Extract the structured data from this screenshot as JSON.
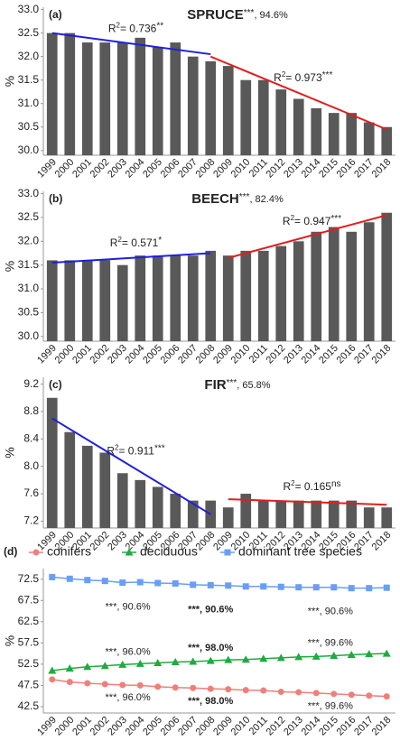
{
  "chart_data": [
    {
      "type": "bar",
      "panel_label": "(a)",
      "title": "SPRUCE",
      "title_stars": "***",
      "title_note": ", 94.6%",
      "y_label": "%",
      "categories": [
        "1999",
        "2000",
        "2001",
        "2002",
        "2003",
        "2004",
        "2005",
        "2006",
        "2007",
        "2008",
        "2009",
        "2010",
        "2011",
        "2012",
        "2013",
        "2014",
        "2015",
        "2016",
        "2017",
        "2018"
      ],
      "values": [
        32.5,
        32.5,
        32.3,
        32.3,
        32.3,
        32.4,
        32.2,
        32.3,
        32.0,
        31.9,
        31.8,
        31.5,
        31.5,
        31.3,
        31.1,
        30.9,
        30.8,
        30.8,
        30.6,
        30.5
      ],
      "color": "#595959",
      "ylim": [
        29.9,
        33.05
      ],
      "yticks": [
        {
          "value": 30,
          "label": "30.0"
        },
        30.5,
        {
          "value": 31,
          "label": "31.0"
        },
        31.5,
        {
          "value": 32,
          "label": "32.0"
        },
        32.5,
        {
          "value": 33,
          "label": "33.0"
        }
      ],
      "trend_lines": [
        {
          "color": "#1f1fe0",
          "x": [
            "1999",
            "2008"
          ],
          "y": [
            32.5,
            32.05
          ],
          "r": "R",
          "sup": "2",
          "text": "= 0.736",
          "stars": "**"
        },
        {
          "color": "#e01f1f",
          "x": [
            "2008",
            "2018"
          ],
          "y": [
            32.0,
            30.45
          ],
          "r": "R",
          "sup": "2",
          "text": "= 0.973",
          "stars": "***"
        }
      ]
    },
    {
      "type": "bar",
      "panel_label": "(b)",
      "title": "BEECH",
      "title_stars": "***",
      "title_note": ", 82.4%",
      "y_label": "%",
      "categories": [
        "1999",
        "2000",
        "2001",
        "2002",
        "2003",
        "2004",
        "2005",
        "2006",
        "2007",
        "2008",
        "2009",
        "2010",
        "2011",
        "2012",
        "2013",
        "2014",
        "2015",
        "2016",
        "2017",
        "2018"
      ],
      "values": [
        31.6,
        31.6,
        31.6,
        31.6,
        31.5,
        31.7,
        31.7,
        31.7,
        31.7,
        31.8,
        31.7,
        31.8,
        31.8,
        31.9,
        32.0,
        32.2,
        32.3,
        32.2,
        32.4,
        32.6
      ],
      "color": "#595959",
      "ylim": [
        29.9,
        33.05
      ],
      "yticks": [
        {
          "value": 30,
          "label": "30.0"
        },
        30.5,
        {
          "value": 31,
          "label": "31.0"
        },
        31.5,
        {
          "value": 32,
          "label": "32.0"
        },
        32.5,
        {
          "value": 33,
          "label": "33.0"
        }
      ],
      "trend_lines": [
        {
          "color": "#1f1fe0",
          "x": [
            "1999",
            "2008"
          ],
          "y": [
            31.55,
            31.75
          ],
          "r": "R",
          "sup": "2",
          "text": "= 0.571",
          "stars": "*"
        },
        {
          "color": "#e01f1f",
          "x": [
            "2009",
            "2018"
          ],
          "y": [
            31.65,
            32.55
          ],
          "r": "R",
          "sup": "2",
          "text": "= 0.947",
          "stars": "***"
        }
      ]
    },
    {
      "type": "bar",
      "panel_label": "(c)",
      "title": "FIR",
      "title_stars": "***",
      "title_note": ", 65.8%",
      "y_label": "%",
      "categories": [
        "1999",
        "2000",
        "2001",
        "2002",
        "2003",
        "2004",
        "2005",
        "2006",
        "2007",
        "2008",
        "2009",
        "2010",
        "2011",
        "2012",
        "2013",
        "2014",
        "2015",
        "2016",
        "2017",
        "2018"
      ],
      "values": [
        9.0,
        8.5,
        8.3,
        8.2,
        7.9,
        7.8,
        7.7,
        7.6,
        7.5,
        7.5,
        7.4,
        7.6,
        7.5,
        7.5,
        7.5,
        7.5,
        7.5,
        7.5,
        7.4,
        7.4
      ],
      "color": "#595959",
      "ylim": [
        7.1,
        9.3
      ],
      "yticks": [
        7.2,
        7.6,
        {
          "value": 8,
          "label": "8.0"
        },
        8.4,
        8.8,
        9.2
      ],
      "trend_lines": [
        {
          "color": "#1f1fe0",
          "x": [
            "1999",
            "2008"
          ],
          "y": [
            8.7,
            7.3
          ],
          "r": "R",
          "sup": "2",
          "text": "= 0.911",
          "stars": "***"
        },
        {
          "color": "#e01f1f",
          "x": [
            "2009",
            "2018"
          ],
          "y": [
            7.52,
            7.44
          ],
          "r": "R",
          "sup": "2",
          "text": "= 0.165",
          "stars": "ns"
        }
      ]
    },
    {
      "type": "line",
      "panel_label": "(d)",
      "y_label": "%",
      "legend_position": "top",
      "categories": [
        "1999",
        "2000",
        "2001",
        "2002",
        "2003",
        "2004",
        "2005",
        "2006",
        "2007",
        "2008",
        "2009",
        "2010",
        "2011",
        "2012",
        "2013",
        "2014",
        "2015",
        "2016",
        "2017",
        "2018"
      ],
      "ylim": [
        41,
        75
      ],
      "yticks": [
        42.5,
        47.5,
        52.5,
        57.5,
        62.5,
        67.5,
        72.5
      ],
      "series": [
        {
          "name": "conifers",
          "color": "#f07f7a",
          "marker": "circle",
          "values": [
            48.9,
            48.3,
            48.0,
            47.8,
            47.6,
            47.5,
            47.2,
            47.0,
            46.9,
            46.7,
            46.6,
            46.4,
            46.3,
            46.0,
            45.9,
            45.7,
            45.5,
            45.3,
            45.1,
            44.9
          ],
          "annotations": [
            {
              "text": "***, 96.0%",
              "bold": false
            },
            {
              "text": "***, 98.0%",
              "bold": true
            },
            {
              "text": "***, 99.6%",
              "bold": false
            }
          ]
        },
        {
          "name": "deciduous",
          "color": "#1fab3f",
          "marker": "triangle",
          "values": [
            51.0,
            51.5,
            51.9,
            52.1,
            52.4,
            52.6,
            52.8,
            53.0,
            53.1,
            53.3,
            53.5,
            53.6,
            53.8,
            54.0,
            54.2,
            54.3,
            54.5,
            54.7,
            54.9,
            55.0
          ],
          "annotations": [
            {
              "text": "***, 96.0%",
              "bold": false
            },
            {
              "text": "***, 98.0%",
              "bold": true
            },
            {
              "text": "***, 99.6%",
              "bold": false
            }
          ]
        },
        {
          "name": "dominant tree species",
          "color": "#6a9ef5",
          "marker": "square",
          "values": [
            73.0,
            72.6,
            72.3,
            72.1,
            71.7,
            71.8,
            71.6,
            71.5,
            71.2,
            71.1,
            71.0,
            70.8,
            70.8,
            70.7,
            70.6,
            70.6,
            70.6,
            70.4,
            70.4,
            70.5
          ],
          "annotations": [
            {
              "text": "***, 90.6%",
              "bold": false
            },
            {
              "text": "***, 90.6%",
              "bold": true
            },
            {
              "text": "***, 90.6%",
              "bold": false
            }
          ]
        }
      ]
    }
  ]
}
